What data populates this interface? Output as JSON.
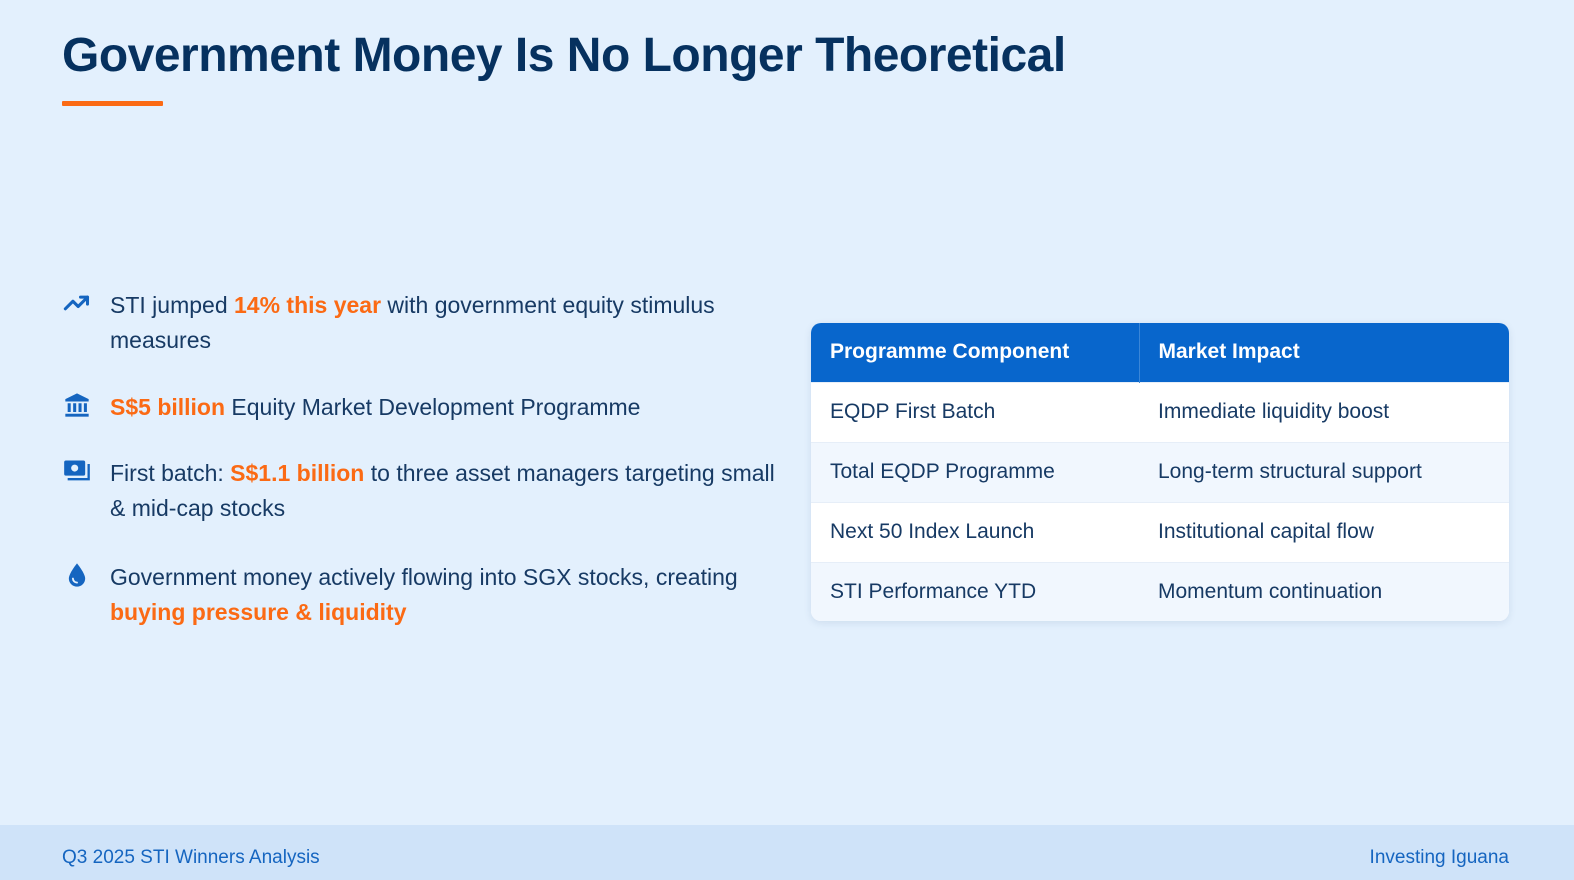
{
  "title": "Government Money Is No Longer Theoretical",
  "bullets": [
    {
      "icon": "trending-up-icon",
      "before": "STI jumped ",
      "highlight": "14% this year",
      "after": " with government equity stimulus measures"
    },
    {
      "icon": "bank-icon",
      "before": "",
      "highlight": "S$5 billion",
      "after": " Equity Market Development Programme"
    },
    {
      "icon": "money-icon",
      "before": "First batch: ",
      "highlight": "S$1.1 billion",
      "after": " to three asset managers targeting small & mid-cap stocks"
    },
    {
      "icon": "droplet-icon",
      "before": "Government money actively flowing into SGX stocks, creating ",
      "highlight": "buying pressure & liquidity",
      "after": ""
    }
  ],
  "table": {
    "headers": [
      "Programme Component",
      "Market Impact"
    ],
    "rows": [
      [
        "EQDP First Batch",
        "Immediate liquidity boost"
      ],
      [
        "Total EQDP Programme",
        "Long-term structural support"
      ],
      [
        "Next 50 Index Launch",
        "Institutional capital flow"
      ],
      [
        "STI Performance YTD",
        "Momentum continuation"
      ]
    ]
  },
  "footer": {
    "left": "Q3 2025 STI Winners Analysis",
    "right": "Investing Iguana"
  },
  "colors": {
    "background": "#e3f0fd",
    "title": "#06315f",
    "accent": "#fb6a14",
    "table_header": "#0866cc",
    "icon": "#1565c0",
    "footer_bg": "#cfe3f9"
  }
}
